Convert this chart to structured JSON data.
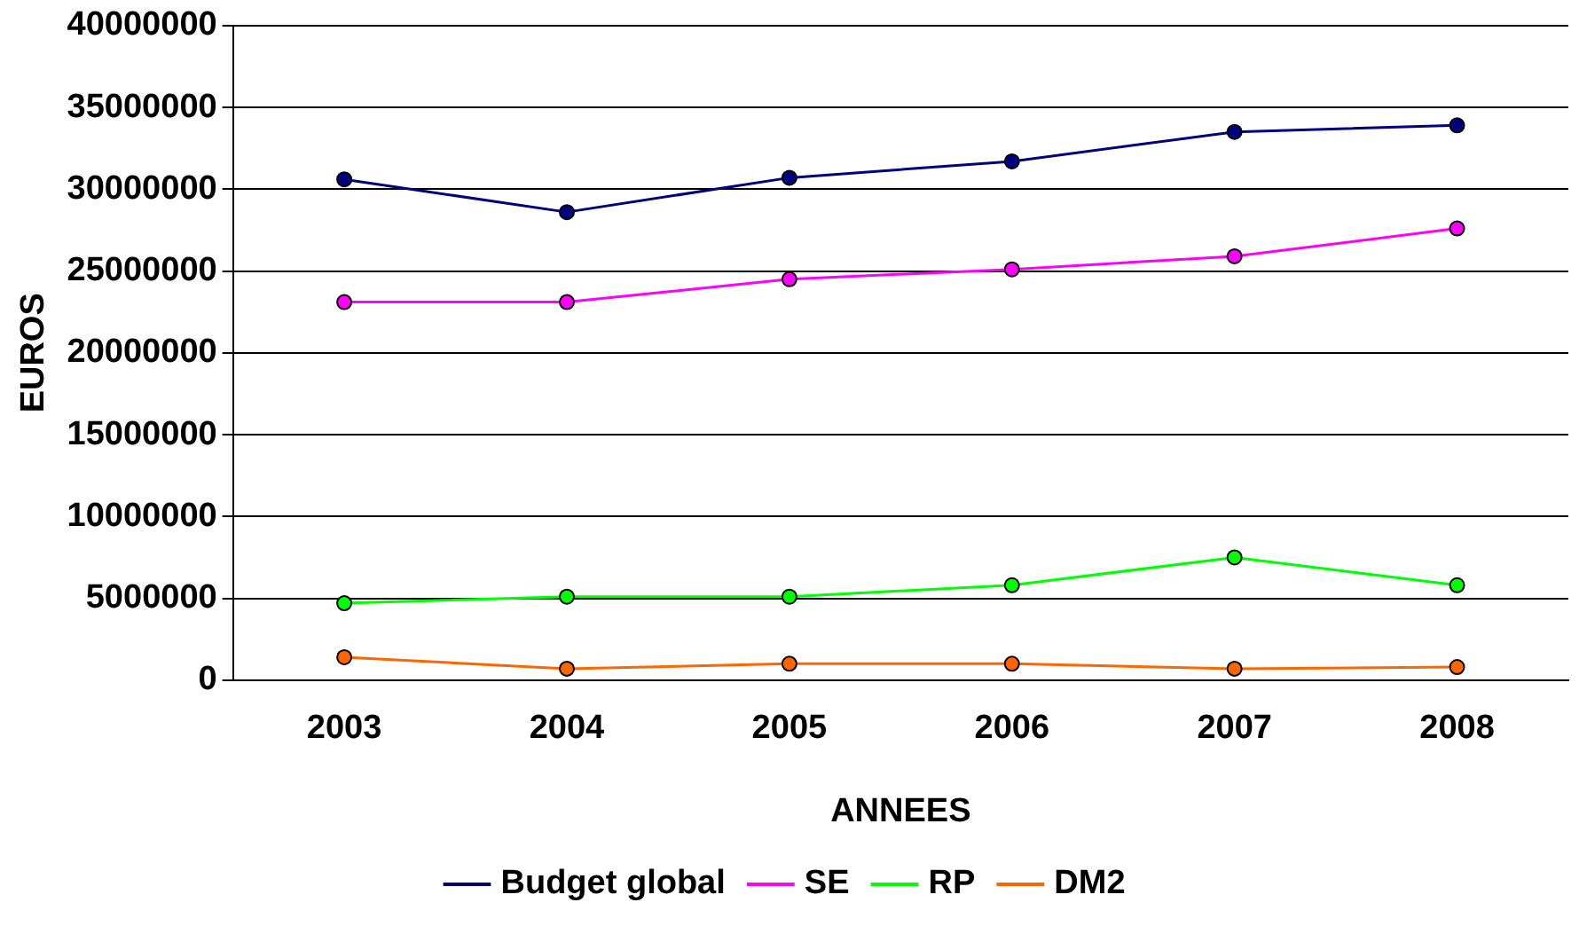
{
  "chart_data": {
    "type": "line",
    "xlabel": "ANNEES",
    "ylabel": "EUROS",
    "categories": [
      "2003",
      "2004",
      "2005",
      "2006",
      "2007",
      "2008"
    ],
    "series": [
      {
        "name": "Budget global",
        "color": "#000080",
        "values": [
          30600000,
          28600000,
          30700000,
          31700000,
          33500000,
          33900000
        ]
      },
      {
        "name": "SE",
        "color": "#ff00ff",
        "values": [
          23100000,
          23100000,
          24500000,
          25100000,
          25900000,
          27600000
        ]
      },
      {
        "name": "RP",
        "color": "#00ff00",
        "values": [
          4700000,
          5100000,
          5100000,
          5800000,
          7500000,
          5800000
        ]
      },
      {
        "name": "DM2",
        "color": "#ff6600",
        "values": [
          1400000,
          700000,
          1000000,
          1000000,
          700000,
          800000
        ]
      }
    ],
    "ylim": [
      0,
      40000000
    ],
    "yticks": [
      0,
      5000000,
      10000000,
      15000000,
      20000000,
      25000000,
      30000000,
      35000000,
      40000000
    ],
    "grid": "y",
    "legend": "bottom",
    "marker": "circle",
    "line_style": "solid"
  }
}
